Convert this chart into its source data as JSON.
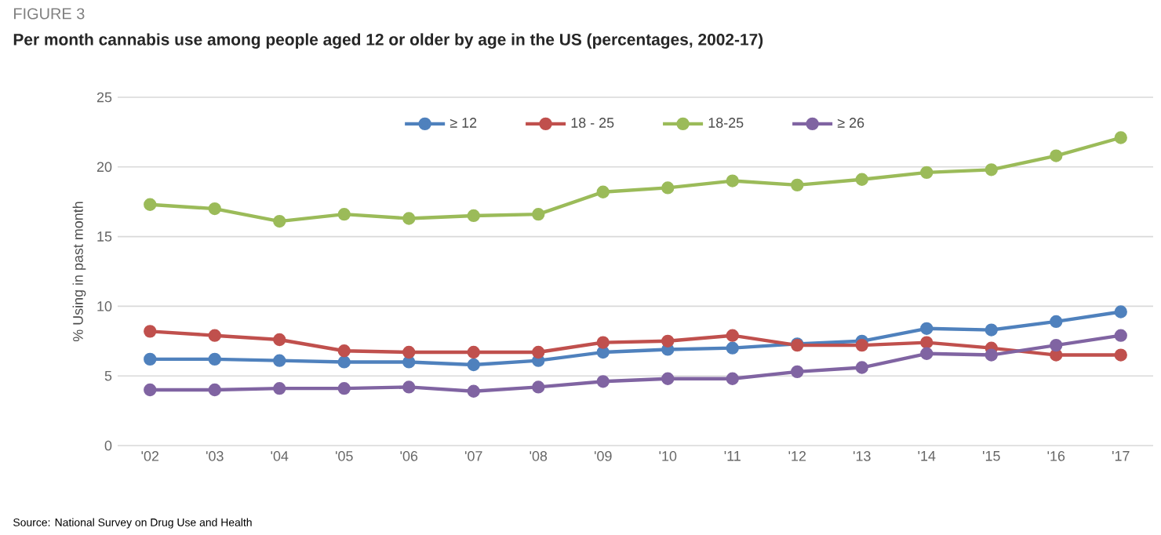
{
  "chart_data": {
    "type": "line",
    "title": "Per month cannabis use among people aged 12 or older by age in the US (percentages, 2002-17)",
    "ylabel": "% Using in past month",
    "annotations": [
      "FIGURE 3",
      "Source: National Survey on Drug Use and Health"
    ],
    "categories": [
      "'02",
      "'03",
      "'04",
      "'05",
      "'06",
      "'07",
      "'08",
      "'09",
      "'10",
      "'11",
      "'12",
      "'13",
      "'14",
      "'15",
      "'16",
      "'17"
    ],
    "series": [
      {
        "name": "≥ 12",
        "color": "#4f81bd",
        "values": [
          6.2,
          6.2,
          6.1,
          6.0,
          6.0,
          5.8,
          6.1,
          6.7,
          6.9,
          7.0,
          7.3,
          7.5,
          8.4,
          8.3,
          8.9,
          9.6
        ]
      },
      {
        "name": "18 - 25",
        "color": "#c0504d",
        "values": [
          8.2,
          7.9,
          7.6,
          6.8,
          6.7,
          6.7,
          6.7,
          7.4,
          7.5,
          7.9,
          7.2,
          7.2,
          7.4,
          7.0,
          6.5,
          6.5
        ]
      },
      {
        "name": "18-25",
        "color": "#9bbb59",
        "values": [
          17.3,
          17.0,
          16.1,
          16.6,
          16.3,
          16.5,
          16.6,
          18.2,
          18.5,
          19.0,
          18.7,
          19.1,
          19.6,
          19.8,
          20.8,
          22.1
        ]
      },
      {
        "name": "≥ 26",
        "color": "#8064a2",
        "values": [
          4.0,
          4.0,
          4.1,
          4.1,
          4.2,
          3.9,
          4.2,
          4.6,
          4.8,
          4.8,
          5.3,
          5.6,
          6.6,
          6.5,
          7.2,
          7.9
        ]
      }
    ],
    "ylim": [
      0,
      25
    ],
    "yticks": [
      0,
      5,
      10,
      15,
      20,
      25
    ],
    "grid": "y",
    "legend": "top",
    "marker": "circle",
    "line_style": "solid"
  }
}
